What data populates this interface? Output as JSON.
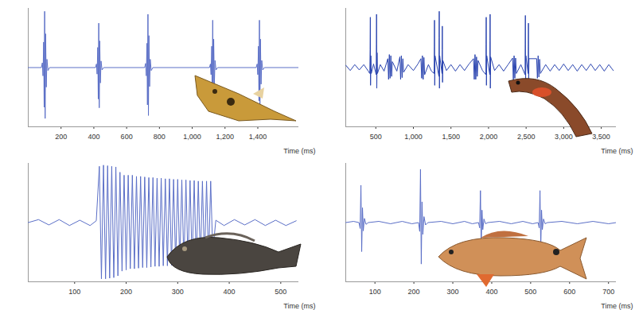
{
  "chart_data": [
    {
      "type": "line",
      "x_label": "Time (ms)",
      "x": [
        0,
        80,
        86,
        90,
        94,
        97,
        100,
        103,
        106,
        110,
        114,
        120,
        130,
        410,
        416,
        420,
        424,
        427,
        430,
        433,
        436,
        440,
        444,
        450,
        460,
        710,
        716,
        720,
        724,
        727,
        730,
        733,
        736,
        740,
        744,
        750,
        760,
        1105,
        1111,
        1115,
        1119,
        1122,
        1125,
        1128,
        1131,
        1135,
        1139,
        1145,
        1155,
        1390,
        1396,
        1400,
        1404,
        1407,
        1410,
        1413,
        1416,
        1420,
        1424,
        1430,
        1440,
        1650
      ],
      "series": [
        {
          "color": "#5b6fc7",
          "values": [
            0,
            0,
            0.08,
            -0.14,
            0.43,
            -0.67,
            0.95,
            -0.86,
            0.57,
            -0.33,
            0.14,
            -0.05,
            0,
            0,
            0.06,
            -0.11,
            0.34,
            -0.53,
            0.75,
            -0.68,
            0.45,
            -0.26,
            0.11,
            -0.04,
            0,
            0,
            0.07,
            -0.14,
            0.41,
            -0.63,
            0.9,
            -0.81,
            0.54,
            -0.32,
            0.14,
            -0.05,
            0,
            0,
            0.06,
            -0.12,
            0.36,
            -0.56,
            0.8,
            -0.72,
            0.48,
            -0.28,
            0.12,
            -0.04,
            0,
            0,
            0.06,
            -0.12,
            0.36,
            -0.56,
            0.8,
            -0.72,
            0.48,
            -0.28,
            0.12,
            -0.04,
            0,
            0
          ]
        }
      ],
      "xlim": [
        0,
        1650
      ],
      "xticks": [
        200,
        400,
        600,
        800,
        1000,
        1200,
        1400
      ],
      "ylim": [
        -1,
        1
      ],
      "yticks": [],
      "tick_labels": "x"
    },
    {
      "type": "line",
      "x_label": "Time (ms)",
      "x": [
        100,
        160,
        220,
        280,
        340,
        400,
        420,
        424,
        427,
        430,
        434,
        440,
        470,
        505,
        508,
        510,
        513,
        517,
        522,
        560,
        610,
        660,
        670,
        680,
        690,
        700,
        710,
        720,
        780,
        820,
        830,
        840,
        850,
        860,
        870,
        930,
        1000,
        1060,
        1100,
        1110,
        1120,
        1130,
        1140,
        1150,
        1200,
        1240,
        1276,
        1279,
        1281,
        1284,
        1288,
        1340,
        1342,
        1344,
        1347,
        1350,
        1381,
        1383,
        1385,
        1388,
        1392,
        1440,
        1500,
        1560,
        1620,
        1680,
        1740,
        1800,
        1810,
        1820,
        1830,
        1840,
        1850,
        1860,
        1920,
        1965,
        1967,
        1969,
        1972,
        1976,
        2017,
        2019,
        2021,
        2024,
        2028,
        2080,
        2140,
        2200,
        2260,
        2320,
        2330,
        2340,
        2350,
        2360,
        2370,
        2430,
        2486,
        2488,
        2490,
        2493,
        2497,
        2527,
        2529,
        2531,
        2534,
        2538,
        2640,
        2650,
        2660,
        2670,
        2680,
        2690,
        2760,
        2820,
        2880,
        2940,
        3000,
        3060,
        3120,
        3180,
        3240,
        3300,
        3360,
        3420,
        3480,
        3540,
        3600,
        3660
      ],
      "series": [
        {
          "color": "#2b45b0",
          "values": [
            0.04,
            -0.05,
            0.05,
            -0.04,
            0.05,
            -0.06,
            -0.1,
            0.3,
            0.85,
            -0.3,
            0.2,
            -0.1,
            0.06,
            -0.12,
            0.4,
            0.9,
            -0.35,
            0.25,
            -0.1,
            0.05,
            -0.06,
            0.15,
            -0.2,
            0.22,
            -0.18,
            0.2,
            -0.15,
            0.1,
            -0.06,
            0.18,
            -0.2,
            0.2,
            -0.17,
            0.15,
            -0.08,
            0.05,
            -0.05,
            0.06,
            0.15,
            -0.18,
            0.2,
            -0.2,
            0.17,
            -0.12,
            0.05,
            -0.06,
            -0.1,
            0.35,
            0.8,
            -0.3,
            0.2,
            -0.15,
            0.5,
            0.95,
            -0.35,
            0.2,
            -0.1,
            0.3,
            0.7,
            -0.25,
            0.12,
            -0.05,
            0.05,
            -0.06,
            0.05,
            -0.05,
            0.06,
            0.15,
            -0.2,
            0.22,
            -0.2,
            0.18,
            -0.15,
            0.12,
            -0.05,
            -0.12,
            0.4,
            0.85,
            -0.3,
            0.2,
            -0.12,
            0.45,
            0.9,
            -0.35,
            0.18,
            -0.05,
            0.05,
            -0.06,
            0.05,
            0.16,
            -0.2,
            0.2,
            -0.18,
            0.16,
            -0.1,
            0.05,
            -0.12,
            0.4,
            0.88,
            -0.32,
            0.2,
            -0.1,
            0.35,
            0.75,
            -0.3,
            0.15,
            0.15,
            -0.18,
            0.2,
            -0.16,
            0.14,
            -0.1,
            0.05,
            -0.06,
            0.05,
            -0.05,
            0.06,
            -0.05,
            0.05,
            -0.06,
            0.05,
            -0.05,
            0.06,
            -0.05,
            0.05,
            -0.06,
            0.05,
            -0.05
          ]
        }
      ],
      "xlim": [
        100,
        3700
      ],
      "xticks": [
        500,
        1000,
        1500,
        2000,
        2500,
        3000,
        3500
      ],
      "ylim": [
        -1,
        1
      ],
      "yticks": [],
      "tick_labels": "x"
    },
    {
      "type": "line",
      "x_label": "Time (ms)",
      "x": [
        10,
        30,
        50,
        70,
        90,
        110,
        130,
        142,
        148,
        152,
        156,
        160,
        164,
        168,
        172,
        176,
        180,
        184,
        188,
        192,
        196,
        200,
        204,
        208,
        212,
        216,
        220,
        224,
        228,
        232,
        236,
        240,
        244,
        248,
        252,
        256,
        260,
        264,
        268,
        272,
        276,
        280,
        284,
        288,
        292,
        296,
        300,
        304,
        308,
        312,
        316,
        320,
        324,
        328,
        332,
        336,
        340,
        344,
        348,
        352,
        356,
        360,
        364,
        368,
        374,
        390,
        410,
        430,
        450,
        470,
        490,
        510,
        530
      ],
      "series": [
        {
          "color": "#5b6fc7",
          "values": [
            0,
            0.05,
            -0.04,
            0.05,
            -0.05,
            0.04,
            -0.05,
            0.03,
            0.95,
            -0.95,
            0.97,
            -0.95,
            0.96,
            -0.94,
            0.95,
            -0.93,
            0.94,
            -0.9,
            0.85,
            -0.82,
            0.8,
            -0.8,
            0.8,
            -0.78,
            0.8,
            -0.78,
            0.78,
            -0.77,
            0.78,
            -0.76,
            0.77,
            -0.76,
            0.76,
            -0.75,
            0.76,
            -0.74,
            0.75,
            -0.74,
            0.75,
            -0.73,
            0.74,
            -0.73,
            0.74,
            -0.72,
            0.73,
            -0.72,
            0.73,
            -0.71,
            0.72,
            -0.71,
            0.72,
            -0.7,
            0.71,
            -0.7,
            0.71,
            -0.7,
            0.7,
            -0.69,
            0.7,
            -0.69,
            0.7,
            -0.68,
            0.7,
            -0.5,
            0.04,
            -0.05,
            0.05,
            -0.04,
            0.05,
            -0.05,
            0.04,
            -0.05,
            0.03
          ]
        }
      ],
      "xlim": [
        10,
        535
      ],
      "xticks": [
        100,
        200,
        300,
        400,
        500
      ],
      "ylim": [
        -1,
        1
      ],
      "yticks": [],
      "tick_labels": "x"
    },
    {
      "type": "line",
      "x_label": "Time (ms)",
      "x": [
        25,
        45,
        59,
        62,
        64,
        66,
        68,
        70,
        73,
        77,
        83,
        110,
        140,
        170,
        195,
        212,
        215,
        217,
        219,
        221,
        223,
        226,
        230,
        236,
        270,
        300,
        330,
        350,
        366,
        369,
        371,
        373,
        375,
        377,
        380,
        384,
        390,
        420,
        450,
        480,
        505,
        519,
        522,
        524,
        526,
        528,
        530,
        533,
        537,
        543,
        580,
        620,
        660,
        700,
        720
      ],
      "series": [
        {
          "color": "#5b6fc7",
          "values": [
            0,
            0.02,
            0,
            -0.1,
            0.63,
            -0.49,
            0.25,
            -0.14,
            0.07,
            -0.03,
            0,
            0.02,
            -0.02,
            0.02,
            -0.02,
            0,
            -0.15,
            0.9,
            -0.7,
            0.35,
            -0.2,
            0.1,
            -0.04,
            0,
            0.02,
            -0.02,
            0.02,
            -0.02,
            0,
            -0.09,
            0.54,
            -0.42,
            0.21,
            -0.12,
            0.06,
            -0.02,
            0,
            0.02,
            -0.02,
            0.02,
            -0.02,
            0,
            -0.09,
            0.54,
            -0.42,
            0.21,
            -0.12,
            0.06,
            -0.02,
            0,
            0.02,
            -0.02,
            0.02,
            -0.02,
            0
          ]
        }
      ],
      "xlim": [
        25,
        720
      ],
      "xticks": [
        100,
        200,
        300,
        400,
        500,
        600,
        700
      ],
      "ylim": [
        -1,
        1
      ],
      "yticks": [],
      "tick_labels": "x"
    }
  ]
}
